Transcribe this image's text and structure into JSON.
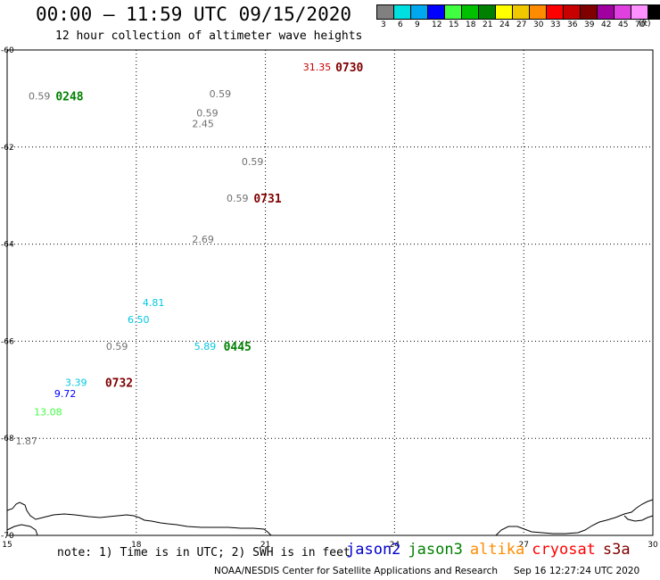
{
  "header": {
    "title": "00:00 – 11:59 UTC 09/15/2020",
    "subtitle": "12 hour collection of altimeter wave heights"
  },
  "color_scale": {
    "unit": "(ft)",
    "bins": [
      {
        "label": "3",
        "color": "#808080"
      },
      {
        "label": "6",
        "color": "#00e0e0"
      },
      {
        "label": "9",
        "color": "#00a8f0"
      },
      {
        "label": "12",
        "color": "#0000ff"
      },
      {
        "label": "15",
        "color": "#40ff40"
      },
      {
        "label": "18",
        "color": "#00c000"
      },
      {
        "label": "21",
        "color": "#008000"
      },
      {
        "label": "24",
        "color": "#ffff00"
      },
      {
        "label": "27",
        "color": "#f0c800"
      },
      {
        "label": "30",
        "color": "#ff8c00"
      },
      {
        "label": "33",
        "color": "#ff0000"
      },
      {
        "label": "36",
        "color": "#c80000"
      },
      {
        "label": "39",
        "color": "#800000"
      },
      {
        "label": "42",
        "color": "#a000a0"
      },
      {
        "label": "45",
        "color": "#e040e0"
      },
      {
        "label": "70",
        "color": "#ff90ff"
      },
      {
        "label": "",
        "color": "#000000"
      }
    ]
  },
  "chart_data": {
    "type": "scatter",
    "xlim": [
      15,
      30
    ],
    "ylim": [
      -70,
      -60
    ],
    "x_ticks": [
      "15",
      "18",
      "21",
      "24",
      "27",
      "30"
    ],
    "y_ticks": [
      "-60",
      "-62",
      "-64",
      "-66",
      "-68",
      "-70"
    ],
    "grid": true,
    "points": [
      {
        "lon": 22.2,
        "lat": -60.35,
        "value": "31.35",
        "color": "#cc0000"
      },
      {
        "lon": 15.75,
        "lat": -60.95,
        "value": "0.59",
        "color": "#707070"
      },
      {
        "lon": 19.95,
        "lat": -60.9,
        "value": "0.59",
        "color": "#707070"
      },
      {
        "lon": 19.65,
        "lat": -61.3,
        "value": "0.59",
        "color": "#707070"
      },
      {
        "lon": 19.55,
        "lat": -61.52,
        "value": "2.45",
        "color": "#707070"
      },
      {
        "lon": 20.7,
        "lat": -62.3,
        "value": "0.59",
        "color": "#707070"
      },
      {
        "lon": 20.35,
        "lat": -63.05,
        "value": "0.59",
        "color": "#707070"
      },
      {
        "lon": 19.55,
        "lat": -63.9,
        "value": "2.69",
        "color": "#707070"
      },
      {
        "lon": 18.4,
        "lat": -65.2,
        "value": "4.81",
        "color": "#00c8e0"
      },
      {
        "lon": 18.05,
        "lat": -65.55,
        "value": "6.50",
        "color": "#00c8e0"
      },
      {
        "lon": 17.55,
        "lat": -66.1,
        "value": "0.59",
        "color": "#707070"
      },
      {
        "lon": 19.6,
        "lat": -66.1,
        "value": "5.89",
        "color": "#00c8e0"
      },
      {
        "lon": 16.6,
        "lat": -66.85,
        "value": "3.39",
        "color": "#00c8e0"
      },
      {
        "lon": 16.35,
        "lat": -67.08,
        "value": "9.72",
        "color": "#0000ff"
      },
      {
        "lon": 15.95,
        "lat": -67.45,
        "value": "13.08",
        "color": "#40ff40"
      },
      {
        "lon": 15.45,
        "lat": -68.05,
        "value": "1.87",
        "color": "#707070"
      }
    ],
    "pass_labels": [
      {
        "lon": 22.95,
        "lat": -60.35,
        "value": "0730",
        "color": "#800000"
      },
      {
        "lon": 16.45,
        "lat": -60.95,
        "value": "0248",
        "color": "#008000"
      },
      {
        "lon": 21.05,
        "lat": -63.05,
        "value": "0731",
        "color": "#800000"
      },
      {
        "lon": 20.35,
        "lat": -66.1,
        "value": "0445",
        "color": "#008000"
      },
      {
        "lon": 17.6,
        "lat": -66.85,
        "value": "0732",
        "color": "#800000"
      }
    ]
  },
  "footer": {
    "note": "note: 1) Time is in UTC; 2) SWH is in feet",
    "legend": [
      {
        "label": "jason2",
        "color": "#0000cc"
      },
      {
        "label": "jason3",
        "color": "#008000"
      },
      {
        "label": "altika",
        "color": "#ff8c00"
      },
      {
        "label": "cryosat",
        "color": "#ff0000"
      },
      {
        "label": "s3a",
        "color": "#800000"
      }
    ],
    "credit": "NOAA/NESDIS Center for Satellite Applications and Research",
    "timestamp": "Sep 16 12:27:24 UTC 2020"
  }
}
